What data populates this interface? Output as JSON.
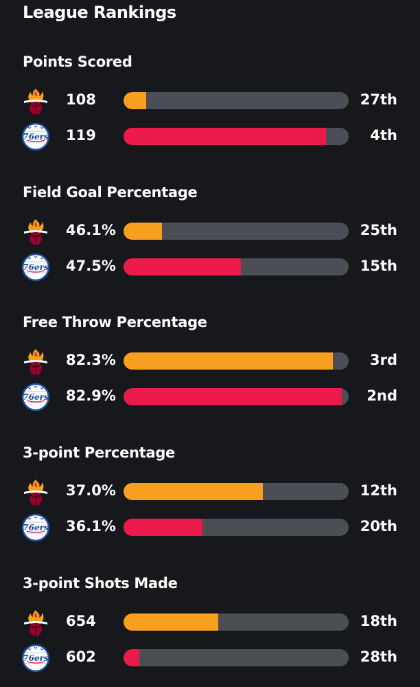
{
  "header": {
    "title": "League Rankings"
  },
  "colors": {
    "heat": "#f7a01f",
    "sixers": "#eb1a4b",
    "track": "#4b4f55"
  },
  "teams": {
    "heat": {
      "logo_icon": "miami-heat-logo-icon"
    },
    "sixers": {
      "logo_icon": "philadelphia-76ers-logo-icon",
      "logo_text": "76ers"
    }
  },
  "sections": [
    {
      "title": "Points Scored",
      "heat": {
        "value": "108",
        "rank": "27th",
        "bar": 0.1
      },
      "sixers": {
        "value": "119",
        "rank": "4th",
        "bar": 0.9
      }
    },
    {
      "title": "Field Goal Percentage",
      "heat": {
        "value": "46.1%",
        "rank": "25th",
        "bar": 0.17
      },
      "sixers": {
        "value": "47.5%",
        "rank": "15th",
        "bar": 0.52
      }
    },
    {
      "title": "Free Throw Percentage",
      "heat": {
        "value": "82.3%",
        "rank": "3rd",
        "bar": 0.93
      },
      "sixers": {
        "value": "82.9%",
        "rank": "2nd",
        "bar": 0.97
      }
    },
    {
      "title": "3-point Percentage",
      "heat": {
        "value": "37.0%",
        "rank": "12th",
        "bar": 0.62
      },
      "sixers": {
        "value": "36.1%",
        "rank": "20th",
        "bar": 0.35
      }
    },
    {
      "title": "3-point Shots Made",
      "heat": {
        "value": "654",
        "rank": "18th",
        "bar": 0.42
      },
      "sixers": {
        "value": "602",
        "rank": "28th",
        "bar": 0.07
      }
    }
  ]
}
